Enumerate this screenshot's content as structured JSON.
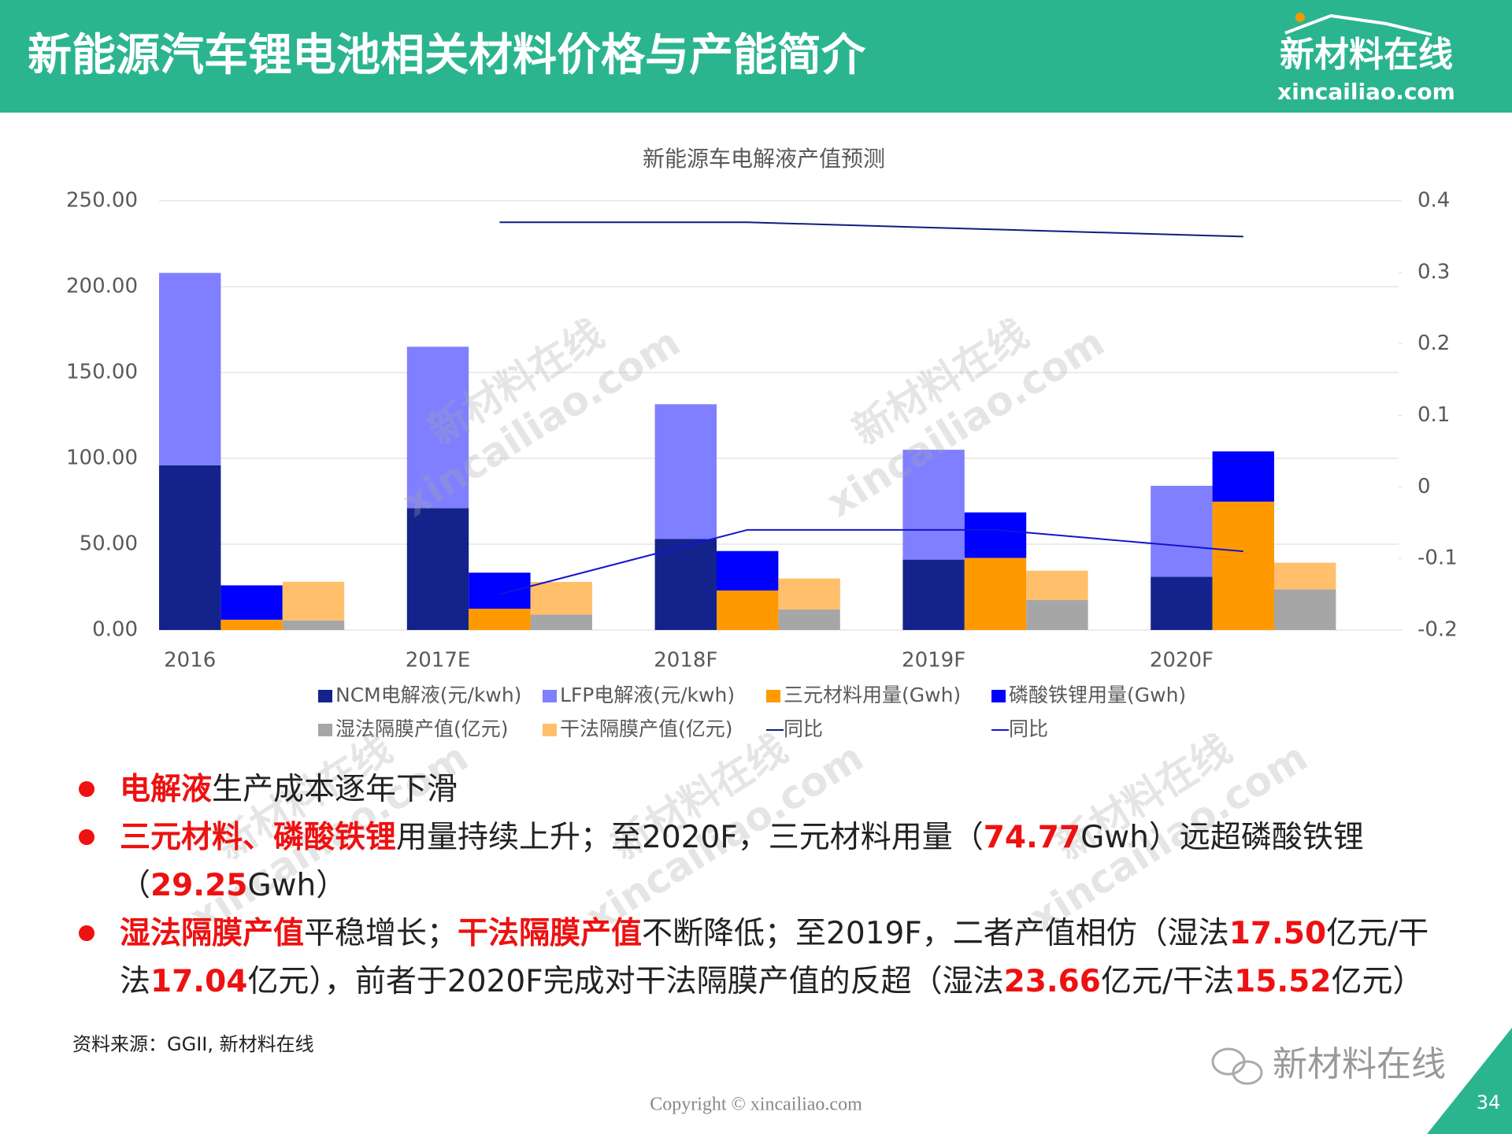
{
  "header": {
    "title": "新能源汽车锂电池相关材料价格与产能简介",
    "logo": "新材料在线",
    "logo_url": "xincailiao.com"
  },
  "chart_data": {
    "type": "bar",
    "title": "新能源车电解液产值预测",
    "categories": [
      "2016",
      "2017E",
      "2018F",
      "2019F",
      "2020F"
    ],
    "series": [
      {
        "name": "NCM电解液(元/kwh)",
        "color": "#13238b",
        "values": [
          96,
          71,
          53,
          41,
          31
        ]
      },
      {
        "name": "LFP电解液(元/kwh)",
        "color": "#7f7fff",
        "values": [
          112,
          94,
          78.5,
          64,
          53
        ]
      },
      {
        "name": "三元材料用量(Gwh)",
        "color": "#ff9900",
        "values": [
          6,
          12.4,
          23,
          42,
          74.77
        ]
      },
      {
        "name": "磷酸铁锂用量(Gwh)",
        "color": "#0000ff",
        "values": [
          20,
          21,
          23,
          26.5,
          29.25
        ]
      },
      {
        "name": "湿法隔膜产值(亿元)",
        "color": "#a6a6a6",
        "values": [
          5.6,
          9,
          12,
          17.5,
          23.66
        ]
      },
      {
        "name": "干法隔膜产值(亿元)",
        "color": "#ffbf6b",
        "values": [
          22.5,
          19,
          18,
          17.04,
          15.52
        ]
      },
      {
        "name": "同比",
        "type": "line",
        "axis": "y2",
        "color": "#0b1f7a",
        "values": [
          null,
          0.37,
          0.37,
          0.36,
          0.35
        ]
      },
      {
        "name": "同比",
        "type": "line",
        "axis": "y2",
        "color": "#1414d0",
        "values": [
          null,
          -0.15,
          -0.06,
          -0.06,
          -0.09
        ]
      }
    ],
    "ylim": [
      0,
      250
    ],
    "yticks": [
      {
        "value": 0,
        "label": "0.00"
      },
      {
        "value": 50,
        "label": "50.00"
      },
      {
        "value": 100,
        "label": "100.00"
      },
      {
        "value": 150,
        "label": "150.00"
      },
      {
        "value": 200,
        "label": "200.00"
      },
      {
        "value": 250,
        "label": "250.00"
      }
    ],
    "y2lim": [
      -0.2,
      0.4
    ],
    "y2ticks": [
      -0.2,
      -0.1,
      0,
      0.1,
      0.2,
      0.3,
      0.4
    ],
    "grid": true
  },
  "bullets": [
    [
      {
        "text": "电解液",
        "em": true
      },
      {
        "text": "生产成本逐年下滑",
        "em": false
      }
    ],
    [
      {
        "text": "三元材料、磷酸铁锂",
        "em": true
      },
      {
        "text": "用量持续上升；至2020F，三元材料用量（",
        "em": false
      },
      {
        "text": "74.77",
        "em": true
      },
      {
        "text": "Gwh）远超磷酸铁锂（",
        "em": false
      },
      {
        "text": "29.25",
        "em": true
      },
      {
        "text": "Gwh）",
        "em": false
      }
    ],
    [
      {
        "text": "湿法隔膜产值",
        "em": true
      },
      {
        "text": "平稳增长；",
        "em": false
      },
      {
        "text": "干法隔膜产值",
        "em": true
      },
      {
        "text": "不断降低；至2019F，二者产值相仿（湿法",
        "em": false
      },
      {
        "text": "17.50",
        "em": true
      },
      {
        "text": "亿元/干法",
        "em": false
      },
      {
        "text": "17.04",
        "em": true
      },
      {
        "text": "亿元），前者于2020F完成对干法隔膜产值的反超（湿法",
        "em": false
      },
      {
        "text": "23.66",
        "em": true
      },
      {
        "text": "亿元/干法",
        "em": false
      },
      {
        "text": "15.52",
        "em": true
      },
      {
        "text": "亿元）",
        "em": false
      }
    ]
  ],
  "source": "资料来源：GGII, 新材料在线",
  "watermark": {
    "name": "新材料在线",
    "url": "xincailiao.com"
  },
  "footer": {
    "copyright": "Copyright © xincailiao.com",
    "wechat": "新材料在线",
    "page": "34"
  }
}
